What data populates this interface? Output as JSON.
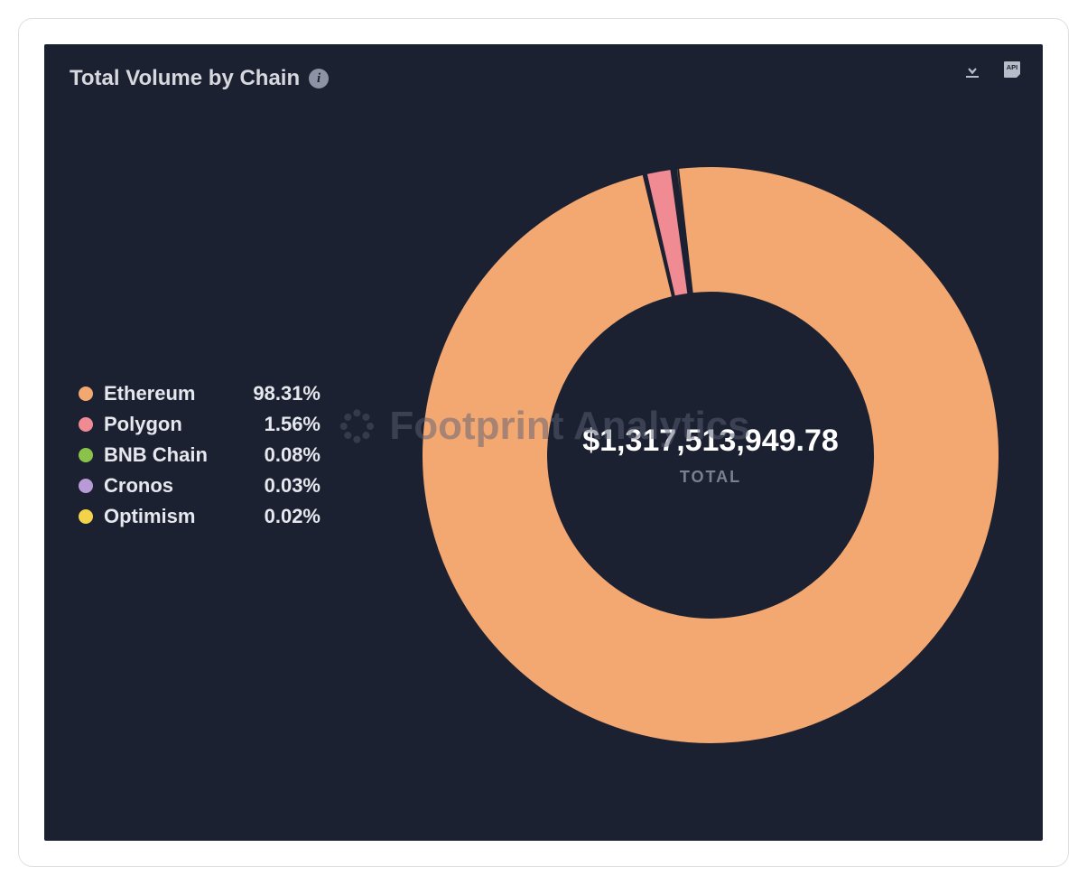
{
  "panel": {
    "title": "Total Volume by Chain",
    "background_color": "#1c2132",
    "title_color": "#d6d8de",
    "title_fontsize": 24
  },
  "actions": {
    "download": "download-icon",
    "api": "api-icon"
  },
  "watermark": {
    "text": "Footprint Analytics",
    "color": "#5a6074",
    "opacity": 0.5,
    "fontsize": 44
  },
  "chart": {
    "type": "donut",
    "total_value": "$1,317,513,949.78",
    "total_label": "TOTAL",
    "outer_radius": 320,
    "inner_radius": 180,
    "gap_deg": 0.6,
    "stroke_color": "#1c2132",
    "stroke_width": 2,
    "center_value_fontsize": 34,
    "center_label_fontsize": 18,
    "center_value_color": "#ffffff",
    "center_label_color": "#7a8094",
    "series": [
      {
        "label": "Ethereum",
        "pct": 98.31,
        "pct_display": "98.31%",
        "color": "#f4a871"
      },
      {
        "label": "Polygon",
        "pct": 1.56,
        "pct_display": "1.56%",
        "color": "#f08b94"
      },
      {
        "label": "BNB Chain",
        "pct": 0.08,
        "pct_display": "0.08%",
        "color": "#8bc34a"
      },
      {
        "label": "Cronos",
        "pct": 0.03,
        "pct_display": "0.03%",
        "color": "#b89ad6"
      },
      {
        "label": "Optimism",
        "pct": 0.02,
        "pct_display": "0.02%",
        "color": "#f3d34a"
      }
    ],
    "legend": {
      "label_fontsize": 22,
      "label_color": "#e6e8ee",
      "dot_size": 16
    }
  }
}
